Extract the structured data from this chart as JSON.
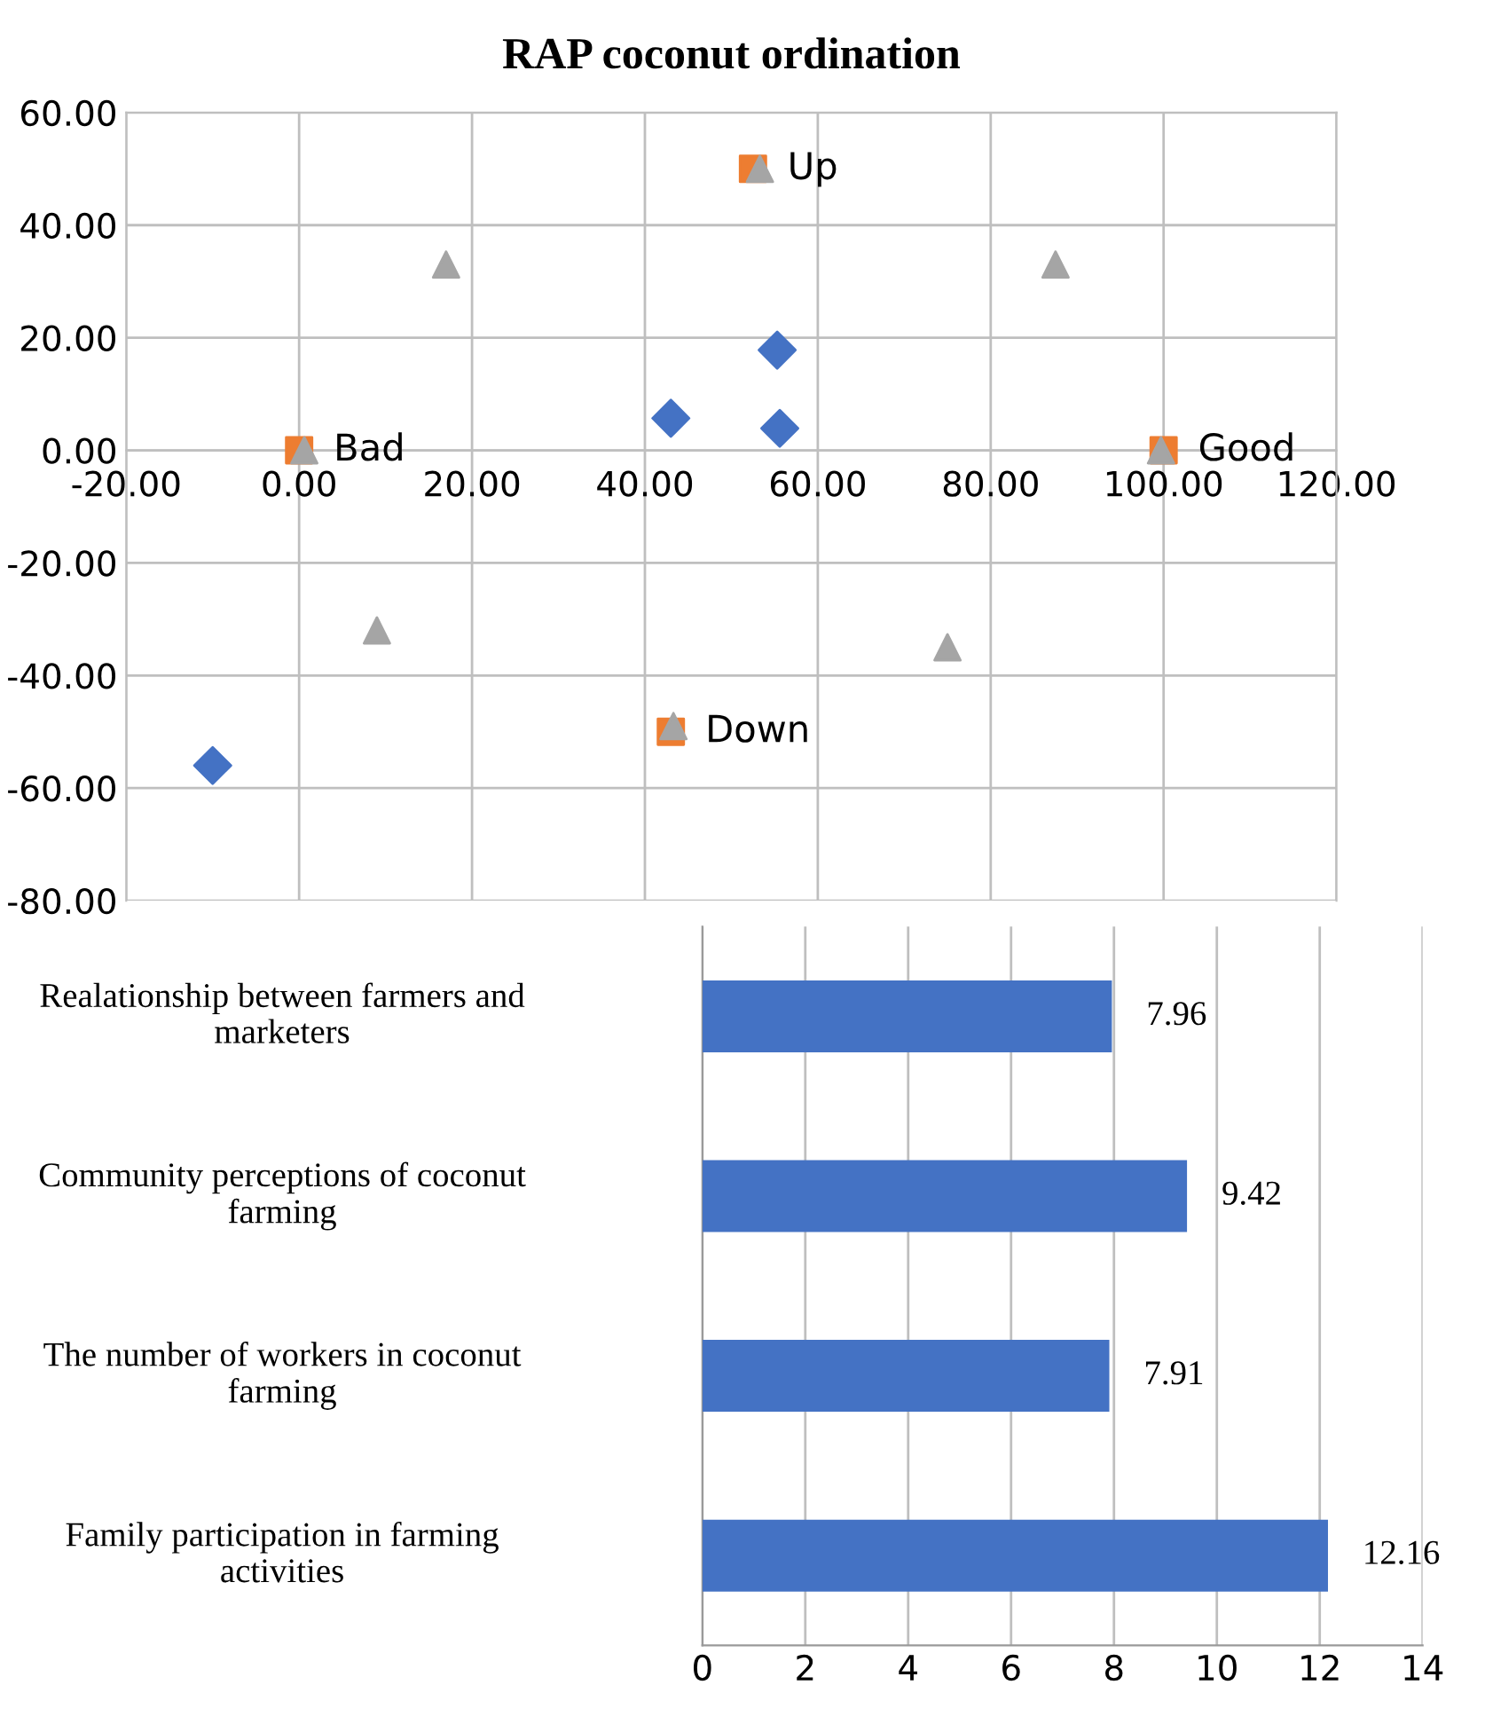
{
  "chart_data": [
    {
      "type": "scatter",
      "title": "RAP coconut ordination",
      "xlim": [
        -20,
        120
      ],
      "ylim": [
        -80,
        60
      ],
      "xticks": [
        {
          "value": -20,
          "label": "-20.00"
        },
        {
          "value": 0,
          "label": "0.00"
        },
        {
          "value": 20,
          "label": "20.00"
        },
        {
          "value": 40,
          "label": "40.00"
        },
        {
          "value": 60,
          "label": "60.00"
        },
        {
          "value": 80,
          "label": "80.00"
        },
        {
          "value": 100,
          "label": "100.00"
        },
        {
          "value": 120,
          "label": "120.00"
        }
      ],
      "yticks": [
        {
          "value": -80,
          "label": "-80.00"
        },
        {
          "value": -60,
          "label": "-60.00"
        },
        {
          "value": -40,
          "label": "-40.00"
        },
        {
          "value": -20,
          "label": "-20.00"
        },
        {
          "value": 0,
          "label": "0.00"
        },
        {
          "value": 20,
          "label": "20.00"
        },
        {
          "value": 40,
          "label": "40.00"
        },
        {
          "value": 60,
          "label": "60.00"
        }
      ],
      "grid": true,
      "series": [
        {
          "color": "#ed7d31",
          "marker": "square",
          "x": [
            0,
            100,
            52.5,
            43
          ],
          "values": [
            0,
            0,
            50,
            -50
          ]
        },
        {
          "color": "#a5a5a5",
          "marker": "triangle",
          "x": [
            0.6,
            99.7,
            53.3,
            43.3,
            17,
            87.5,
            9,
            75
          ],
          "values": [
            0,
            0,
            50,
            -49,
            33,
            33,
            -32,
            -35
          ]
        },
        {
          "color": "#4472c4",
          "marker": "diamond",
          "x": [
            -10,
            43,
            55.3,
            55.6
          ],
          "values": [
            -56,
            5.7,
            17.8,
            3.9
          ]
        }
      ],
      "annotations": [
        {
          "text": "Bad",
          "x": 0,
          "y": 0
        },
        {
          "text": "Good",
          "x": 100,
          "y": 0
        },
        {
          "text": "Up",
          "x": 52.5,
          "y": 50
        },
        {
          "text": "Down",
          "x": 43,
          "y": -50
        }
      ]
    },
    {
      "type": "bar",
      "orientation": "horizontal",
      "categories": [
        "Realationship between farmers and marketers",
        "Community perceptions of coconut farming",
        "The number of workers in coconut farming",
        "Family participation in farming activities"
      ],
      "values": [
        7.96,
        9.42,
        7.91,
        12.16
      ],
      "color": "#4472c4",
      "data_labels": true,
      "xlim": [
        0,
        14
      ],
      "xticks": [
        0,
        2,
        4,
        6,
        8,
        10,
        12,
        14
      ],
      "grid": "x"
    }
  ]
}
